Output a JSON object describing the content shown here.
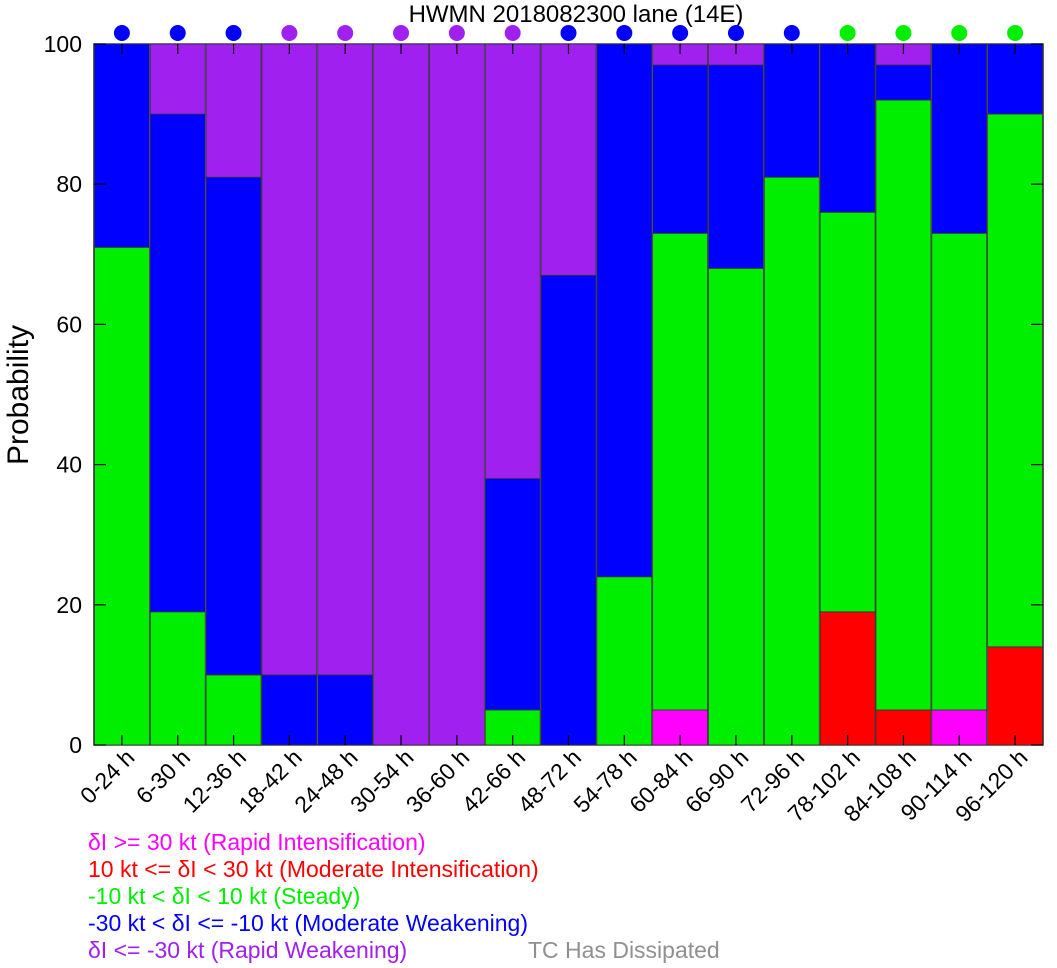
{
  "chart_data": {
    "type": "bar",
    "stacked": true,
    "title": "HWMN 2018082300 lane (14E)",
    "ylabel": "Probability",
    "xlabel": "",
    "ylim": [
      0,
      100
    ],
    "yticks": [
      0,
      20,
      40,
      60,
      80,
      100
    ],
    "categories": [
      "0-24 h",
      "6-30 h",
      "12-36 h",
      "18-42 h",
      "24-48 h",
      "30-54 h",
      "36-60 h",
      "42-66 h",
      "48-72 h",
      "54-78 h",
      "60-84 h",
      "66-90 h",
      "72-96 h",
      "78-102 h",
      "84-108 h",
      "90-114 h",
      "96-120 h"
    ],
    "series": [
      {
        "key": "ri",
        "color": "#ff00ff",
        "values": [
          0,
          0,
          0,
          0,
          0,
          0,
          0,
          0,
          0,
          0,
          5,
          0,
          0,
          0,
          0,
          5,
          0
        ]
      },
      {
        "key": "mi",
        "color": "#ff0000",
        "values": [
          0,
          0,
          0,
          0,
          0,
          0,
          0,
          0,
          0,
          0,
          0,
          0,
          0,
          19,
          5,
          0,
          14
        ]
      },
      {
        "key": "st",
        "color": "#00ee00",
        "values": [
          71,
          19,
          10,
          0,
          0,
          0,
          0,
          5,
          0,
          24,
          68,
          68,
          81,
          57,
          87,
          68,
          76
        ]
      },
      {
        "key": "mw",
        "color": "#0000ff",
        "values": [
          29,
          71,
          71,
          10,
          10,
          0,
          0,
          33,
          67,
          76,
          24,
          29,
          19,
          24,
          5,
          27,
          10
        ]
      },
      {
        "key": "rw",
        "color": "#a020f0",
        "values": [
          0,
          10,
          19,
          90,
          90,
          100,
          100,
          62,
          33,
          0,
          3,
          3,
          0,
          0,
          3,
          0,
          0
        ]
      }
    ],
    "top_markers": [
      "#0000ff",
      "#0000ff",
      "#0000ff",
      "#a020f0",
      "#a020f0",
      "#a020f0",
      "#a020f0",
      "#a020f0",
      "#0000ff",
      "#0000ff",
      "#0000ff",
      "#0000ff",
      "#0000ff",
      "#00ee00",
      "#00ee00",
      "#00ee00",
      "#00ee00"
    ],
    "legend": [
      {
        "text": "δI >= 30 kt (Rapid Intensification)",
        "color": "#ff00ff"
      },
      {
        "text": "10 kt <= δI < 30 kt (Moderate Intensification)",
        "color": "#ff0000"
      },
      {
        "text": "-10 kt < δI < 10 kt (Steady)",
        "color": "#00ee00"
      },
      {
        "text": "-30 kt < δI <= -10 kt (Moderate Weakening)",
        "color": "#0000ff"
      },
      {
        "text": "δI <= -30 kt (Rapid Weakening)",
        "color": "#a020f0"
      }
    ],
    "dissipated": {
      "text": "TC Has Dissipated",
      "color": "#909090"
    }
  }
}
